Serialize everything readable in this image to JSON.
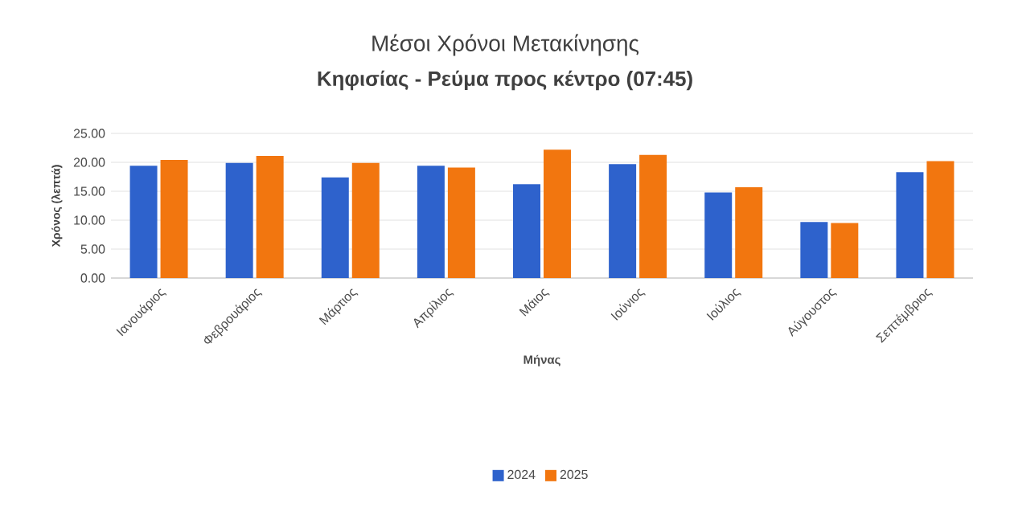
{
  "chart_data": {
    "type": "bar",
    "title": "Μέσοι Χρόνοι Μετακίνησης",
    "subtitle": "Κηφισίας - Ρεύμα προς κέντρο (07:45)",
    "xlabel": "Μήνας",
    "ylabel": "Χρόνος (λεπτά)",
    "categories": [
      "Ιανουάριος",
      "Φεβρουάριος",
      "Μάρτιος",
      "Απρίλιος",
      "Μάιος",
      "Ιούνιος",
      "Ιούλιος",
      "Αύγουστος",
      "Σεπτέμβριος"
    ],
    "series": [
      {
        "name": "2024",
        "color": "#2e62cc",
        "values": [
          19.4,
          19.9,
          17.4,
          19.4,
          16.2,
          19.7,
          14.8,
          9.7,
          18.3
        ]
      },
      {
        "name": "2025",
        "color": "#f2760f",
        "values": [
          20.4,
          21.1,
          19.9,
          19.1,
          22.2,
          21.3,
          15.7,
          9.5,
          20.2
        ]
      }
    ],
    "ylim": [
      0,
      25
    ],
    "yticks": [
      {
        "value": 0,
        "label": "0.00"
      },
      {
        "value": 5,
        "label": "5.00"
      },
      {
        "value": 10,
        "label": "10.00"
      },
      {
        "value": 15,
        "label": "15.00"
      },
      {
        "value": 20,
        "label": "20.00"
      },
      {
        "value": 25,
        "label": "25.00"
      }
    ],
    "grid": "y",
    "legend": "bottom"
  }
}
